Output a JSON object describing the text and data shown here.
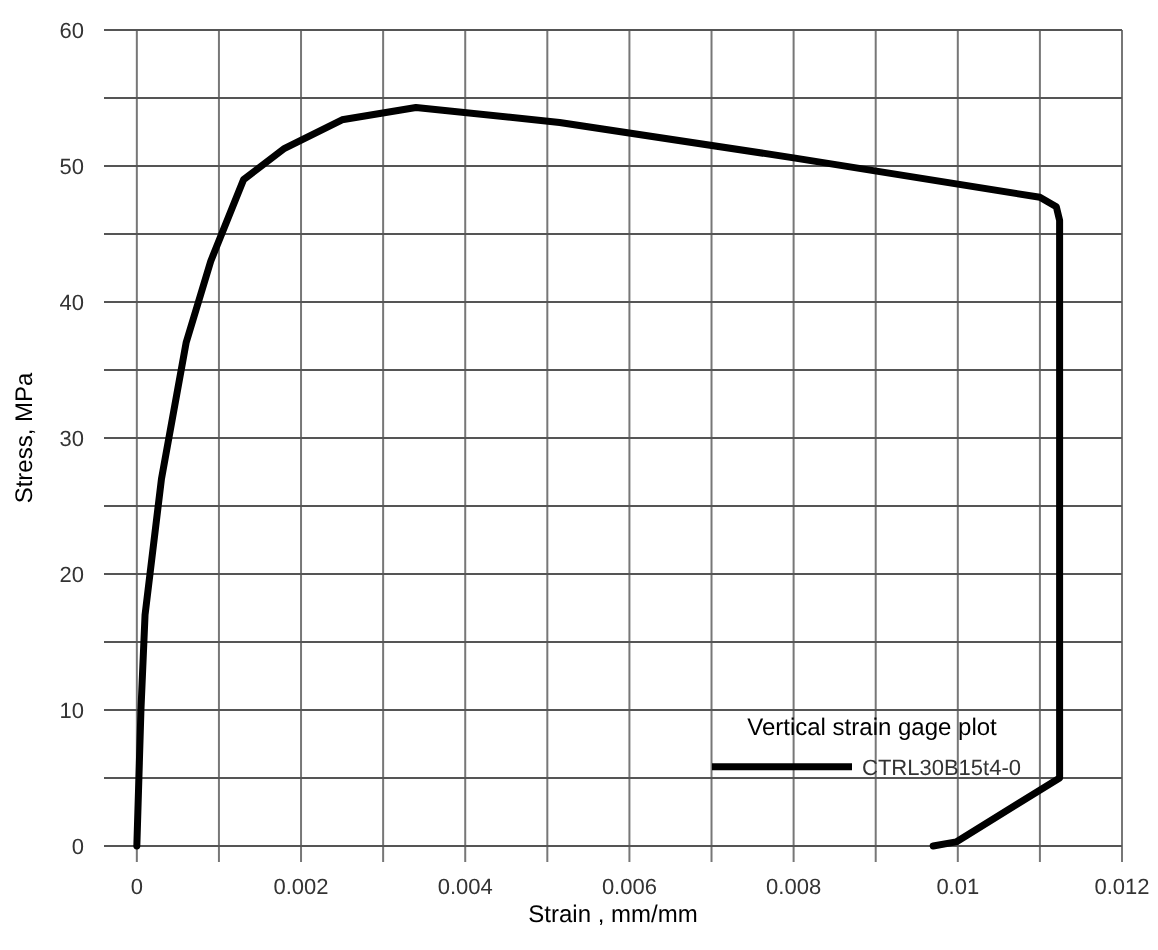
{
  "chart_data": {
    "type": "line",
    "xlabel": "Strain , mm/mm",
    "ylabel": "Stress, MPa",
    "legend_title": "Vertical strain gage plot",
    "legend": "bottom right",
    "grid": true,
    "xlim": [
      -0.0004,
      0.012
    ],
    "ylim": [
      0,
      60
    ],
    "xticks": [
      0,
      {
        "value": 0.001,
        "label": null
      },
      0.002,
      {
        "value": 0.003,
        "label": null
      },
      0.004,
      {
        "value": 0.005,
        "label": null
      },
      0.006,
      {
        "value": 0.007,
        "label": null
      },
      0.008,
      {
        "value": 0.009,
        "label": null
      },
      0.01,
      {
        "value": 0.011,
        "label": null
      },
      0.012
    ],
    "yticks": [
      0,
      {
        "value": 5,
        "label": null
      },
      10,
      {
        "value": 15,
        "label": null
      },
      20,
      {
        "value": 25,
        "label": null
      },
      30,
      {
        "value": 35,
        "label": null
      },
      40,
      {
        "value": 45,
        "label": null
      },
      50,
      {
        "value": 55,
        "label": null
      },
      60
    ],
    "series": [
      {
        "name": "CTRL30B15t4-0",
        "color": "#000000",
        "x": [
          0,
          5e-05,
          0.0001,
          0.0003,
          0.0006,
          0.0009,
          0.0013,
          0.0018,
          0.0025,
          0.0034,
          0.00515,
          0.008,
          0.011,
          0.0112,
          0.01124,
          0.01124,
          0.00998,
          0.0097
        ],
        "values": [
          0,
          10,
          17,
          27,
          37,
          43,
          49,
          51.3,
          53.4,
          54.3,
          53.2,
          50.6,
          47.7,
          47,
          46,
          5,
          0.3,
          0
        ]
      }
    ]
  }
}
